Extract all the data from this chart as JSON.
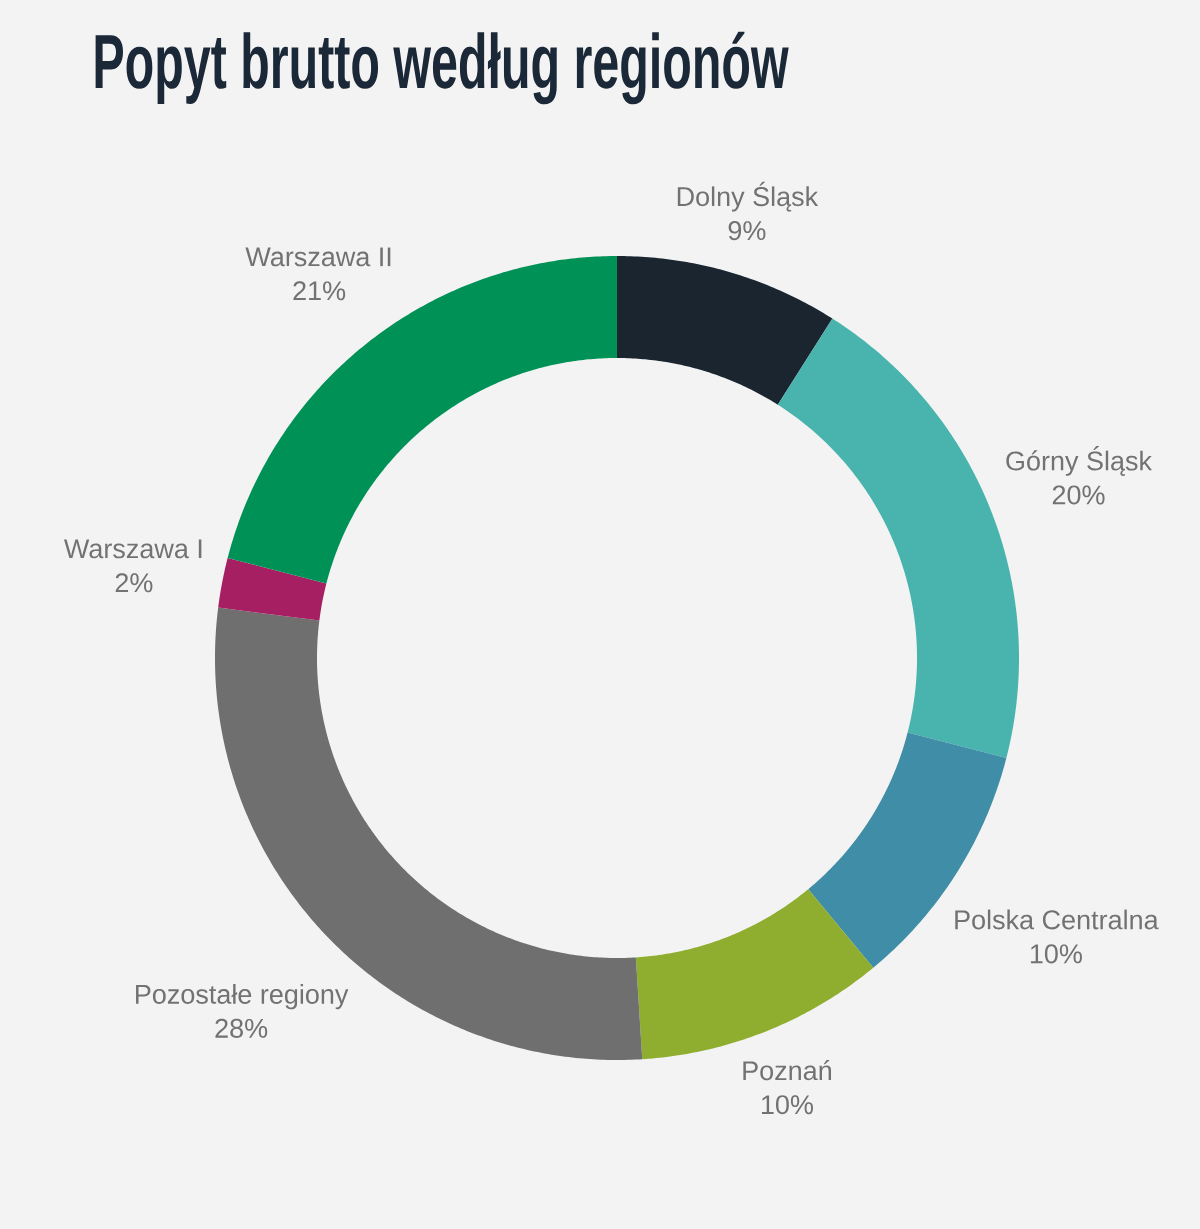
{
  "chart_data": {
    "type": "donut",
    "title": "Popyt brutto według regionów",
    "categories": [
      "Dolny Śląsk",
      "Górny Śląsk",
      "Polska Centralna",
      "Poznań",
      "Pozostałe regiony",
      "Warszawa I",
      "Warszawa II"
    ],
    "values": [
      9,
      20,
      10,
      10,
      28,
      2,
      21
    ],
    "colors": [
      "#1a2530",
      "#48b4ad",
      "#3f8da6",
      "#8fae2f",
      "#6f6f6f",
      "#a61f62",
      "#009157"
    ],
    "value_labels": [
      "9%",
      "20%",
      "10%",
      "10%",
      "28%",
      "2%",
      "21%"
    ]
  }
}
